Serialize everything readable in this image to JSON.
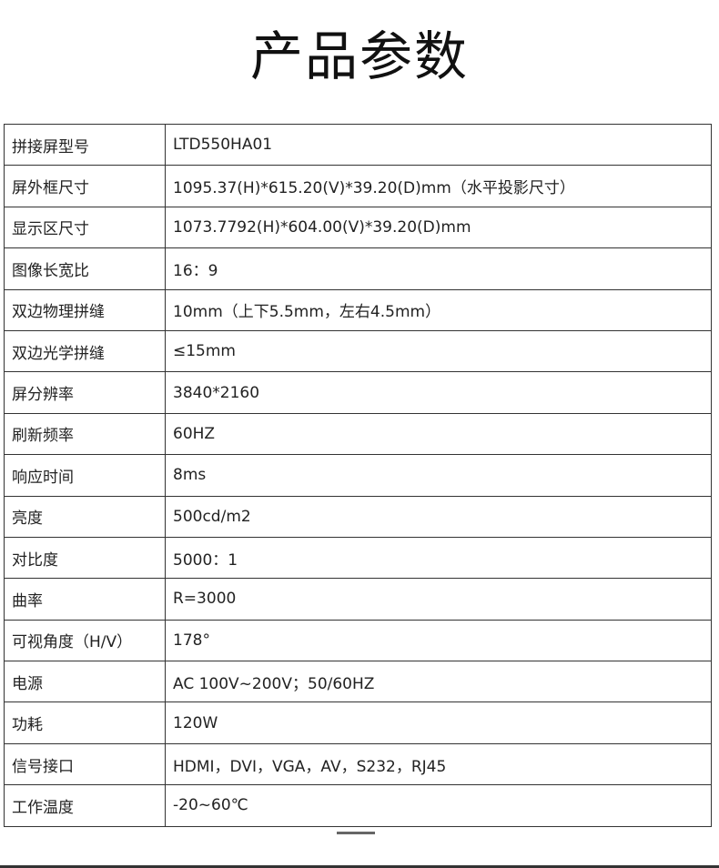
{
  "title": "产品参数",
  "rows": [
    {
      "label": "拼接屏型号",
      "value": "LTD550HA01"
    },
    {
      "label": "屏外框尺寸",
      "value": "1095.37(H)*615.20(V)*39.20(D)mm（水平投影尺寸）"
    },
    {
      "label": "显示区尺寸",
      "value": "1073.7792(H)*604.00(V)*39.20(D)mm"
    },
    {
      "label": "图像长宽比",
      "value": "16：9"
    },
    {
      "label": "双边物理拼缝",
      "value": "10mm（上下5.5mm，左右4.5mm）"
    },
    {
      "label": "双边光学拼缝",
      "value": "≤15mm"
    },
    {
      "label": "屏分辨率",
      "value": "3840*2160"
    },
    {
      "label": "刷新频率",
      "value": "60HZ"
    },
    {
      "label": "响应时间",
      "value": "8ms"
    },
    {
      "label": "亮度",
      "value": "500cd/m2"
    },
    {
      "label": "对比度",
      "value": "5000：1"
    },
    {
      "label": "曲率",
      "value": "R=3000"
    },
    {
      "label": "可视角度（H/V）",
      "value": "178°"
    },
    {
      "label": "电源",
      "value": "AC 100V~200V；50/60HZ"
    },
    {
      "label": "功耗",
      "value": "120W"
    },
    {
      "label": "信号接口",
      "value": "HDMI，DVI，VGA，AV，S232，RJ45"
    },
    {
      "label": "工作温度",
      "value": "-20~60℃"
    }
  ]
}
